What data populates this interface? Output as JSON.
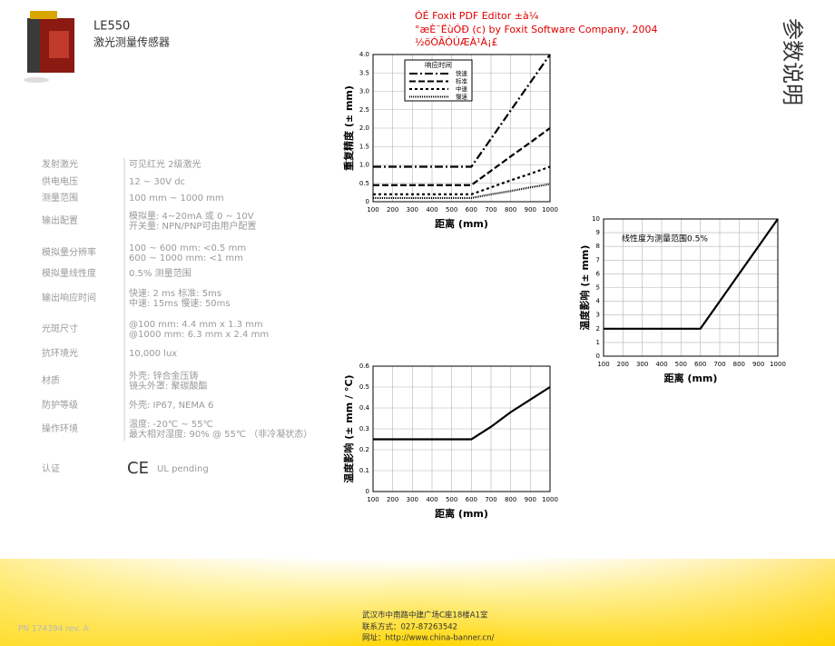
{
  "header": {
    "model": "LE550",
    "name": "激光测量传感器",
    "side_title": "参数说明"
  },
  "watermark": [
    "ÓÉ Foxit PDF Editor ±à¼­",
    "°æÈ¨ËùÓÐ (c) by Foxit Software Company, 2004",
    "½öÓÃÓÚÆÀ¹À¡£"
  ],
  "specs": [
    {
      "label": "发射激光",
      "value": [
        "可见红光 2级激光"
      ]
    },
    {
      "label": "供电电压",
      "value": [
        "12 ~ 30V dc"
      ]
    },
    {
      "label": "测量范围",
      "value": [
        "100 mm ~ 1000 mm"
      ]
    },
    {
      "label": "输出配置",
      "value": [
        "模拟量:  4~20mA 或 0 ~ 10V",
        "开关量:  NPN/PNP可由用户配置"
      ]
    },
    {
      "label": "模拟量分辨率",
      "value": [
        "100 ~ 600 mm: <0.5 mm",
        "600 ~ 1000 mm: <1 mm"
      ]
    },
    {
      "label": "模拟量线性度",
      "value": [
        "0.5% 测量范围"
      ]
    },
    {
      "label": "输出响应时间",
      "value": [
        "快速:  2 ms   标准:   5ms",
        "中速:  15ms   慢速:  50ms"
      ]
    },
    {
      "label": "光斑尺寸",
      "value": [
        "@100 mm:  4.4 mm x 1.3 mm",
        "@1000 mm: 6.3 mm x 2.4 mm"
      ]
    },
    {
      "label": "抗环境光",
      "value": [
        "10,000 lux"
      ]
    },
    {
      "label": "材质",
      "value": [
        "外壳:  锌合金压铸",
        "镜头外罩:  聚碳酸酯"
      ]
    },
    {
      "label": "防护等级",
      "value": [
        "外壳:  IP67,  NEMA 6"
      ]
    },
    {
      "label": "操作环境",
      "value": [
        "温度:  -20℃ ~ 55℃",
        "最大相对湿度:  90% @ 55℃  （非冷凝状态）"
      ]
    },
    {
      "label": "认证",
      "mark": "CE",
      "value": [
        "UL pending"
      ]
    }
  ],
  "chart_data": [
    {
      "type": "line",
      "y_label": "重复精度 (± mm)",
      "x_label": "距离 (mm)",
      "x": [
        100,
        200,
        300,
        400,
        500,
        600,
        700,
        800,
        900,
        1000
      ],
      "xlim": [
        100,
        1000
      ],
      "xticks": [
        100,
        200,
        300,
        400,
        500,
        600,
        700,
        800,
        900,
        1000
      ],
      "ylim": [
        0,
        4
      ],
      "yticks": [
        0,
        0.5,
        {
          "value": 1,
          "label": "1.0"
        },
        1.5,
        {
          "value": 2,
          "label": "2.0"
        },
        2.5,
        {
          "value": 3,
          "label": "3.0"
        },
        3.5,
        {
          "value": 4,
          "label": "4.0"
        }
      ],
      "grid": true,
      "legend_title": "响应时间",
      "series": [
        {
          "name": "快速",
          "color": "#000000",
          "dash": "dashdot",
          "values": [
            0.95,
            0.95,
            0.95,
            0.95,
            0.95,
            0.95,
            1.71,
            2.48,
            3.24,
            4.0
          ]
        },
        {
          "name": "标准",
          "color": "#000000",
          "dash": "dash",
          "values": [
            0.45,
            0.45,
            0.45,
            0.45,
            0.45,
            0.45,
            0.84,
            1.23,
            1.61,
            2.0
          ]
        },
        {
          "name": "中速",
          "color": "#000000",
          "dash": "dot",
          "values": [
            0.2,
            0.2,
            0.2,
            0.2,
            0.2,
            0.2,
            0.39,
            0.58,
            0.76,
            0.95
          ]
        },
        {
          "name": "慢速",
          "color": "#000000",
          "dash": "dense",
          "values": [
            0.1,
            0.1,
            0.1,
            0.1,
            0.1,
            0.1,
            0.2,
            0.29,
            0.39,
            0.48
          ]
        }
      ]
    },
    {
      "type": "line",
      "y_label": "温度影响 (± mm)",
      "x_label": "距离 (mm)",
      "annotation": "线性度为测量范围0.5%",
      "x": [
        100,
        200,
        300,
        400,
        500,
        600,
        700,
        800,
        900,
        1000
      ],
      "xlim": [
        100,
        1000
      ],
      "xticks": [
        100,
        200,
        300,
        400,
        500,
        600,
        700,
        800,
        900,
        1000
      ],
      "ylim": [
        0,
        10
      ],
      "yticks": [
        0,
        1,
        2,
        3,
        4,
        5,
        6,
        7,
        8,
        9,
        10
      ],
      "grid": true,
      "series": [
        {
          "color": "#000000",
          "dash": "solid",
          "values": [
            2,
            2,
            2,
            2,
            2,
            2,
            4,
            6,
            8,
            10
          ]
        }
      ]
    },
    {
      "type": "line",
      "y_label": "温度影响 (± mm / °C)",
      "x_label": "距离   (mm)",
      "x": [
        100,
        200,
        300,
        400,
        500,
        600,
        700,
        800,
        900,
        1000
      ],
      "xlim": [
        100,
        1000
      ],
      "xticks": [
        100,
        200,
        300,
        400,
        500,
        600,
        700,
        800,
        900,
        1000
      ],
      "ylim": [
        0,
        0.6
      ],
      "yticks": [
        0,
        0.1,
        0.2,
        0.3,
        0.4,
        0.5,
        0.6
      ],
      "grid": true,
      "series": [
        {
          "color": "#000000",
          "dash": "solid",
          "values": [
            0.25,
            0.25,
            0.25,
            0.25,
            0.25,
            0.25,
            0.31,
            0.38,
            0.44,
            0.5
          ]
        }
      ]
    }
  ],
  "footer": {
    "part_number": "PN 174394 rev. A",
    "contact": [
      "武汉市中南路中建广场C座18楼A1室",
      "联系方式：027-87263542",
      "网址：http://www.china-banner.cn/"
    ]
  }
}
